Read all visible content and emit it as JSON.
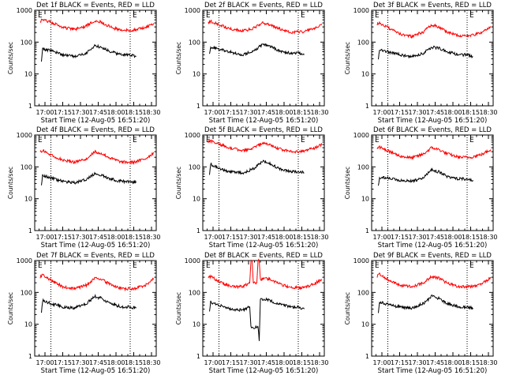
{
  "figure": {
    "colors": {
      "events": "#000000",
      "lld": "#ff0000",
      "axes": "#000000",
      "background": "#ffffff"
    }
  },
  "chart_data": [
    {
      "type": "line",
      "title": "Det 1f BLACK = Events, RED = LLD",
      "xlabel": "Start Time (12-Aug-05 16:51:20)",
      "ylabel": "Counts/sec",
      "ylog": true,
      "ylim": [
        1,
        1000
      ],
      "xlim": [
        "16:51:20",
        "18:34:00"
      ],
      "xticks": [
        "17:00",
        "17:15",
        "17:30",
        "17:45",
        "18:00",
        "18:15",
        "18:30"
      ],
      "yticks": [
        "1",
        "10",
        "100",
        "1000"
      ],
      "markers": [
        "E",
        "E"
      ],
      "dotted_lines": [
        "17:05",
        "18:12"
      ],
      "grid": false,
      "series": [
        {
          "color": "#ff0000",
          "x": [
            "16:56",
            "16:58",
            "17:05",
            "17:15",
            "17:25",
            "17:35",
            "17:42",
            "17:48",
            "17:55",
            "18:05",
            "18:15",
            "18:25",
            "18:32"
          ],
          "values": [
            450,
            500,
            420,
            290,
            250,
            320,
            480,
            420,
            300,
            230,
            240,
            290,
            390
          ]
        },
        {
          "color": "#000000",
          "x": [
            "16:57",
            "16:58",
            "17:05",
            "17:15",
            "17:25",
            "17:35",
            "17:42",
            "17:48",
            "17:55",
            "18:05",
            "18:12",
            "18:17"
          ],
          "values": [
            25,
            60,
            55,
            40,
            35,
            45,
            75,
            70,
            50,
            40,
            40,
            35
          ]
        }
      ]
    },
    {
      "type": "line",
      "title": "Det 2f BLACK = Events, RED = LLD",
      "xlabel": "Start Time (12-Aug-05 16:51:20)",
      "ylabel": "Counts/sec",
      "ylog": true,
      "ylim": [
        1,
        1000
      ],
      "xlim": [
        "16:51:20",
        "18:34:00"
      ],
      "xticks": [
        "17:00",
        "17:15",
        "17:30",
        "17:45",
        "18:00",
        "18:15",
        "18:30"
      ],
      "yticks": [
        "1",
        "10",
        "100",
        "1000"
      ],
      "markers": [
        "E",
        "E"
      ],
      "dotted_lines": [
        "17:05",
        "18:12"
      ],
      "grid": false,
      "series": [
        {
          "color": "#ff0000",
          "x": [
            "16:56",
            "16:58",
            "17:05",
            "17:15",
            "17:25",
            "17:35",
            "17:42",
            "17:48",
            "17:55",
            "18:05",
            "18:15",
            "18:25",
            "18:32"
          ],
          "values": [
            400,
            450,
            350,
            260,
            220,
            280,
            400,
            360,
            270,
            200,
            210,
            260,
            370
          ]
        },
        {
          "color": "#000000",
          "x": [
            "16:57",
            "16:58",
            "17:05",
            "17:15",
            "17:25",
            "17:35",
            "17:42",
            "17:48",
            "17:55",
            "18:05",
            "18:12",
            "18:17"
          ],
          "values": [
            40,
            70,
            60,
            48,
            40,
            55,
            85,
            75,
            55,
            45,
            45,
            40
          ]
        }
      ]
    },
    {
      "type": "line",
      "title": "Det 3f BLACK = Events, RED = LLD",
      "xlabel": "Start Time (12-Aug-05 16:51:20)",
      "ylabel": "Counts/sec",
      "ylog": true,
      "ylim": [
        1,
        1000
      ],
      "xlim": [
        "16:51:20",
        "18:34:00"
      ],
      "xticks": [
        "17:00",
        "17:15",
        "17:30",
        "17:45",
        "18:00",
        "18:15",
        "18:30"
      ],
      "yticks": [
        "1",
        "10",
        "100",
        "1000"
      ],
      "markers": [
        "E",
        "E"
      ],
      "dotted_lines": [
        "17:05",
        "18:12"
      ],
      "grid": false,
      "series": [
        {
          "color": "#ff0000",
          "x": [
            "16:56",
            "16:58",
            "17:05",
            "17:15",
            "17:25",
            "17:35",
            "17:42",
            "17:48",
            "17:55",
            "18:05",
            "18:15",
            "18:25",
            "18:32"
          ],
          "values": [
            350,
            400,
            290,
            180,
            150,
            210,
            350,
            300,
            210,
            160,
            160,
            200,
            300
          ]
        },
        {
          "color": "#000000",
          "x": [
            "16:57",
            "16:58",
            "17:05",
            "17:15",
            "17:25",
            "17:35",
            "17:42",
            "17:48",
            "17:55",
            "18:05",
            "18:12",
            "18:17"
          ],
          "values": [
            30,
            60,
            50,
            40,
            35,
            45,
            70,
            65,
            50,
            40,
            40,
            35
          ]
        }
      ]
    },
    {
      "type": "line",
      "title": "Det 4f BLACK = Events, RED = LLD",
      "xlabel": "Start Time (12-Aug-05 16:51:20)",
      "ylabel": "Counts/sec",
      "ylog": true,
      "ylim": [
        1,
        1000
      ],
      "xlim": [
        "16:51:20",
        "18:34:00"
      ],
      "xticks": [
        "17:00",
        "17:15",
        "17:30",
        "17:45",
        "18:00",
        "18:15",
        "18:30"
      ],
      "yticks": [
        "1",
        "10",
        "100",
        "1000"
      ],
      "markers": [
        "E",
        "E"
      ],
      "dotted_lines": [
        "17:05",
        "18:12"
      ],
      "grid": false,
      "series": [
        {
          "color": "#ff0000",
          "x": [
            "16:56",
            "16:58",
            "17:05",
            "17:15",
            "17:25",
            "17:35",
            "17:42",
            "17:48",
            "17:55",
            "18:05",
            "18:15",
            "18:25",
            "18:32"
          ],
          "values": [
            280,
            330,
            240,
            160,
            140,
            180,
            300,
            260,
            190,
            140,
            140,
            180,
            280
          ]
        },
        {
          "color": "#000000",
          "x": [
            "16:57",
            "16:58",
            "17:05",
            "17:15",
            "17:25",
            "17:35",
            "17:42",
            "17:48",
            "17:55",
            "18:05",
            "18:12",
            "18:17"
          ],
          "values": [
            25,
            55,
            45,
            35,
            32,
            40,
            60,
            55,
            42,
            35,
            35,
            32
          ]
        }
      ]
    },
    {
      "type": "line",
      "title": "Det 5f BLACK = Events, RED = LLD",
      "xlabel": "Start Time (12-Aug-05 16:51:20)",
      "ylabel": "Counts/sec",
      "ylog": true,
      "ylim": [
        1,
        1000
      ],
      "xlim": [
        "16:51:20",
        "18:34:00"
      ],
      "xticks": [
        "17:00",
        "17:15",
        "17:30",
        "17:45",
        "18:00",
        "18:15",
        "18:30"
      ],
      "yticks": [
        "1",
        "10",
        "100",
        "1000"
      ],
      "markers": [
        "E",
        "E"
      ],
      "dotted_lines": [
        "17:05",
        "18:12"
      ],
      "grid": false,
      "series": [
        {
          "color": "#ff0000",
          "x": [
            "16:56",
            "16:58",
            "17:05",
            "17:15",
            "17:25",
            "17:35",
            "17:42",
            "17:48",
            "17:55",
            "18:05",
            "18:15",
            "18:25",
            "18:32"
          ],
          "values": [
            600,
            650,
            520,
            380,
            330,
            400,
            560,
            500,
            380,
            300,
            300,
            380,
            500
          ]
        },
        {
          "color": "#000000",
          "x": [
            "16:57",
            "16:58",
            "17:05",
            "17:15",
            "17:25",
            "17:35",
            "17:42",
            "17:48",
            "17:55",
            "18:05",
            "18:12",
            "18:17"
          ],
          "values": [
            60,
            120,
            90,
            70,
            65,
            90,
            150,
            130,
            90,
            70,
            70,
            65
          ]
        }
      ]
    },
    {
      "type": "line",
      "title": "Det 6f BLACK = Events, RED = LLD",
      "xlabel": "Start Time (12-Aug-05 16:51:20)",
      "ylabel": "Counts/sec",
      "ylog": true,
      "ylim": [
        1,
        1000
      ],
      "xlim": [
        "16:51:20",
        "18:34:00"
      ],
      "xticks": [
        "17:00",
        "17:15",
        "17:30",
        "17:45",
        "18:00",
        "18:15",
        "18:30"
      ],
      "yticks": [
        "1",
        "10",
        "100",
        "1000"
      ],
      "markers": [
        "E",
        "E"
      ],
      "dotted_lines": [
        "17:05",
        "18:12"
      ],
      "grid": false,
      "series": [
        {
          "color": "#ff0000",
          "x": [
            "16:56",
            "16:58",
            "17:05",
            "17:15",
            "17:25",
            "17:35",
            "17:42",
            "17:48",
            "17:55",
            "18:05",
            "18:15",
            "18:25",
            "18:32"
          ],
          "values": [
            350,
            420,
            320,
            220,
            190,
            250,
            400,
            350,
            260,
            200,
            200,
            250,
            350
          ]
        },
        {
          "color": "#000000",
          "x": [
            "16:57",
            "16:58",
            "17:05",
            "17:15",
            "17:25",
            "17:35",
            "17:42",
            "17:48",
            "17:55",
            "18:05",
            "18:12",
            "18:17"
          ],
          "values": [
            25,
            45,
            45,
            38,
            35,
            45,
            80,
            70,
            50,
            42,
            42,
            38
          ]
        }
      ]
    },
    {
      "type": "line",
      "title": "Det 7f BLACK = Events, RED = LLD",
      "xlabel": "Start Time (12-Aug-05 16:51:20)",
      "ylabel": "Counts/sec",
      "ylog": true,
      "ylim": [
        1,
        1000
      ],
      "xlim": [
        "16:51:20",
        "18:34:00"
      ],
      "xticks": [
        "17:00",
        "17:15",
        "17:30",
        "17:45",
        "18:00",
        "18:15",
        "18:30"
      ],
      "yticks": [
        "1",
        "10",
        "100",
        "1000"
      ],
      "markers": [
        "E",
        "E"
      ],
      "dotted_lines": [
        "17:05",
        "18:12"
      ],
      "grid": false,
      "series": [
        {
          "color": "#ff0000",
          "x": [
            "16:56",
            "16:58",
            "17:05",
            "17:15",
            "17:25",
            "17:35",
            "17:42",
            "17:48",
            "17:55",
            "18:05",
            "18:15",
            "18:25",
            "18:32"
          ],
          "values": [
            300,
            350,
            240,
            150,
            130,
            170,
            280,
            250,
            180,
            130,
            130,
            170,
            270
          ]
        },
        {
          "color": "#000000",
          "x": [
            "16:57",
            "16:58",
            "17:05",
            "17:15",
            "17:25",
            "17:35",
            "17:42",
            "17:48",
            "17:55",
            "18:05",
            "18:12",
            "18:17"
          ],
          "values": [
            25,
            55,
            45,
            35,
            32,
            45,
            75,
            65,
            45,
            35,
            35,
            32
          ]
        }
      ]
    },
    {
      "type": "line",
      "title": "Det 8f BLACK = Events, RED = LLD",
      "xlabel": "Start Time (12-Aug-05 16:51:20)",
      "ylabel": "Counts/sec",
      "ylog": true,
      "ylim": [
        1,
        1000
      ],
      "xlim": [
        "16:51:20",
        "18:34:00"
      ],
      "xticks": [
        "17:00",
        "17:15",
        "17:30",
        "17:45",
        "18:00",
        "18:15",
        "18:30"
      ],
      "yticks": [
        "1",
        "10",
        "100",
        "1000"
      ],
      "markers": [
        "E",
        "E"
      ],
      "dotted_lines": [
        "17:05",
        "18:12"
      ],
      "grid": false,
      "series": [
        {
          "color": "#ff0000",
          "x": [
            "16:56",
            "16:58",
            "17:05",
            "17:15",
            "17:25",
            "17:31",
            "17:32",
            "17:33",
            "17:34",
            "17:37",
            "17:38",
            "17:39",
            "17:40",
            "17:45",
            "17:55",
            "18:05",
            "18:15",
            "18:25",
            "18:32"
          ],
          "values": [
            280,
            320,
            220,
            150,
            150,
            200,
            1000,
            1000,
            200,
            200,
            1000,
            1000,
            260,
            280,
            200,
            140,
            140,
            180,
            260
          ]
        },
        {
          "color": "#000000",
          "x": [
            "16:57",
            "16:58",
            "17:05",
            "17:15",
            "17:25",
            "17:31",
            "17:32",
            "17:38",
            "17:39",
            "17:40",
            "17:45",
            "17:55",
            "18:05",
            "18:12",
            "18:17"
          ],
          "values": [
            25,
            50,
            40,
            30,
            28,
            35,
            8,
            8,
            3,
            60,
            60,
            45,
            35,
            35,
            30
          ]
        }
      ]
    },
    {
      "type": "line",
      "title": "Det 9f BLACK = Events, RED = LLD",
      "xlabel": "Start Time (12-Aug-05 16:51:20)",
      "ylabel": "Counts/sec",
      "ylog": true,
      "ylim": [
        1,
        1000
      ],
      "xlim": [
        "16:51:20",
        "18:34:00"
      ],
      "xticks": [
        "17:00",
        "17:15",
        "17:30",
        "17:45",
        "18:00",
        "18:15",
        "18:30"
      ],
      "yticks": [
        "1",
        "10",
        "100",
        "1000"
      ],
      "markers": [
        "E",
        "E"
      ],
      "dotted_lines": [
        "17:05",
        "18:12"
      ],
      "grid": false,
      "series": [
        {
          "color": "#ff0000",
          "x": [
            "16:56",
            "16:58",
            "17:05",
            "17:15",
            "17:25",
            "17:35",
            "17:42",
            "17:48",
            "17:55",
            "18:05",
            "18:15",
            "18:25",
            "18:32"
          ],
          "values": [
            320,
            380,
            260,
            170,
            150,
            200,
            320,
            280,
            200,
            150,
            150,
            190,
            300
          ]
        },
        {
          "color": "#000000",
          "x": [
            "16:57",
            "16:58",
            "17:05",
            "17:15",
            "17:25",
            "17:35",
            "17:42",
            "17:48",
            "17:55",
            "18:05",
            "18:12",
            "18:17"
          ],
          "values": [
            25,
            50,
            42,
            35,
            32,
            45,
            75,
            65,
            45,
            35,
            35,
            32
          ]
        }
      ]
    }
  ]
}
